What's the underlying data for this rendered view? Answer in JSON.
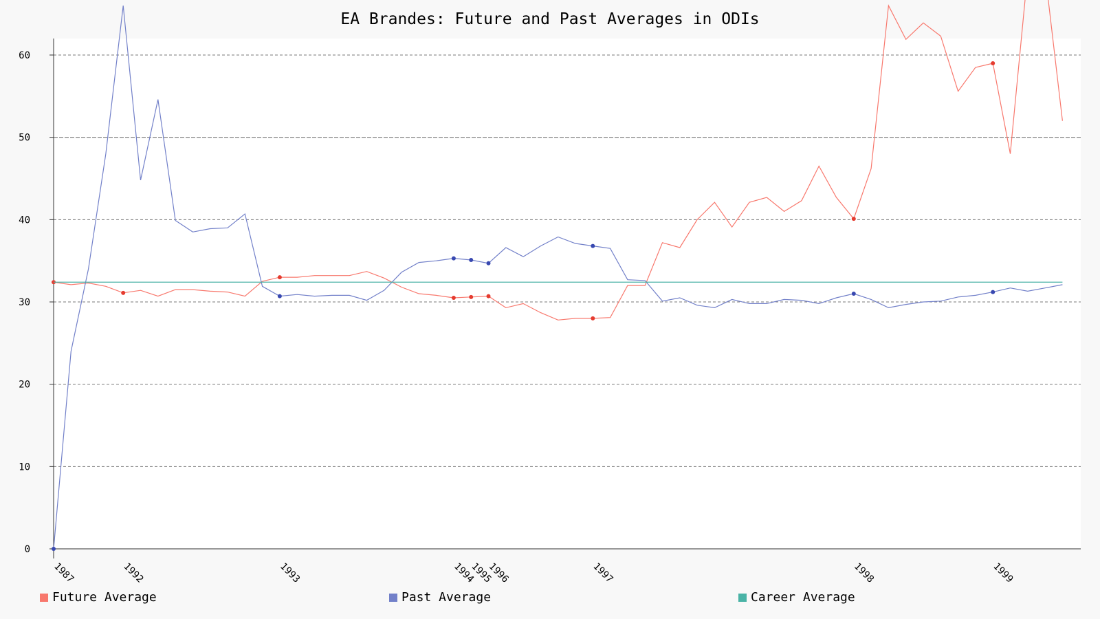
{
  "chart_data": {
    "type": "line",
    "title": "EA Brandes: Future and Past Averages in ODIs",
    "xlabel": "",
    "ylabel": "",
    "ylim": [
      0,
      60
    ],
    "yticks": [
      0,
      10,
      20,
      30,
      40,
      50,
      60
    ],
    "grid": true,
    "legend_position": "bottom",
    "colors": {
      "future": "#f8786d",
      "past": "#7280c9",
      "career": "#4ab3a6"
    },
    "year_labels": [
      {
        "label": "1987",
        "index": 0
      },
      {
        "label": "1992",
        "index": 4
      },
      {
        "label": "1993",
        "index": 13
      },
      {
        "label": "1994",
        "index": 23
      },
      {
        "label": "1995",
        "index": 24
      },
      {
        "label": "1996",
        "index": 25
      },
      {
        "label": "1997",
        "index": 31
      },
      {
        "label": "1998",
        "index": 46
      },
      {
        "label": "1999",
        "index": 54
      }
    ],
    "series": [
      {
        "name": "Future Average",
        "values": [
          32.4,
          32.1,
          32.3,
          31.9,
          31.1,
          31.4,
          30.7,
          31.5,
          31.5,
          31.3,
          31.2,
          30.7,
          32.5,
          33.0,
          33.0,
          33.2,
          33.2,
          33.2,
          33.7,
          32.9,
          31.8,
          31.0,
          30.8,
          30.5,
          30.6,
          30.7,
          29.3,
          29.8,
          28.7,
          27.8,
          28.0,
          28.0,
          28.1,
          32.0,
          32.0,
          37.2,
          36.6,
          40.0,
          42.1,
          39.1,
          42.1,
          42.7,
          41.0,
          42.3,
          46.5,
          42.7,
          40.1,
          46.2,
          66.0,
          61.9,
          63.9,
          62.3,
          55.6,
          58.5,
          59.0,
          48.0,
          70.0,
          70.0,
          52.0
        ],
        "markers": [
          0,
          4,
          13,
          23,
          24,
          25,
          31,
          46,
          54
        ]
      },
      {
        "name": "Past Average",
        "values": [
          0.0,
          24.0,
          34.0,
          48.0,
          66.0,
          44.8,
          54.6,
          39.9,
          38.5,
          38.9,
          39.0,
          40.7,
          31.9,
          30.7,
          30.9,
          30.7,
          30.8,
          30.8,
          30.2,
          31.4,
          33.6,
          34.8,
          35.0,
          35.3,
          35.1,
          34.7,
          36.6,
          35.5,
          36.8,
          37.9,
          37.1,
          36.8,
          36.5,
          32.7,
          32.6,
          30.1,
          30.5,
          29.6,
          29.3,
          30.3,
          29.8,
          29.8,
          30.3,
          30.2,
          29.8,
          30.5,
          31.0,
          30.3,
          29.3,
          29.7,
          30.0,
          30.1,
          30.6,
          30.8,
          31.2,
          31.7,
          31.3,
          31.7,
          32.1
        ],
        "markers": [
          0,
          13,
          23,
          24,
          25,
          31,
          46,
          54
        ]
      },
      {
        "name": "Career Average",
        "values": [
          32.4,
          32.4
        ]
      }
    ]
  }
}
